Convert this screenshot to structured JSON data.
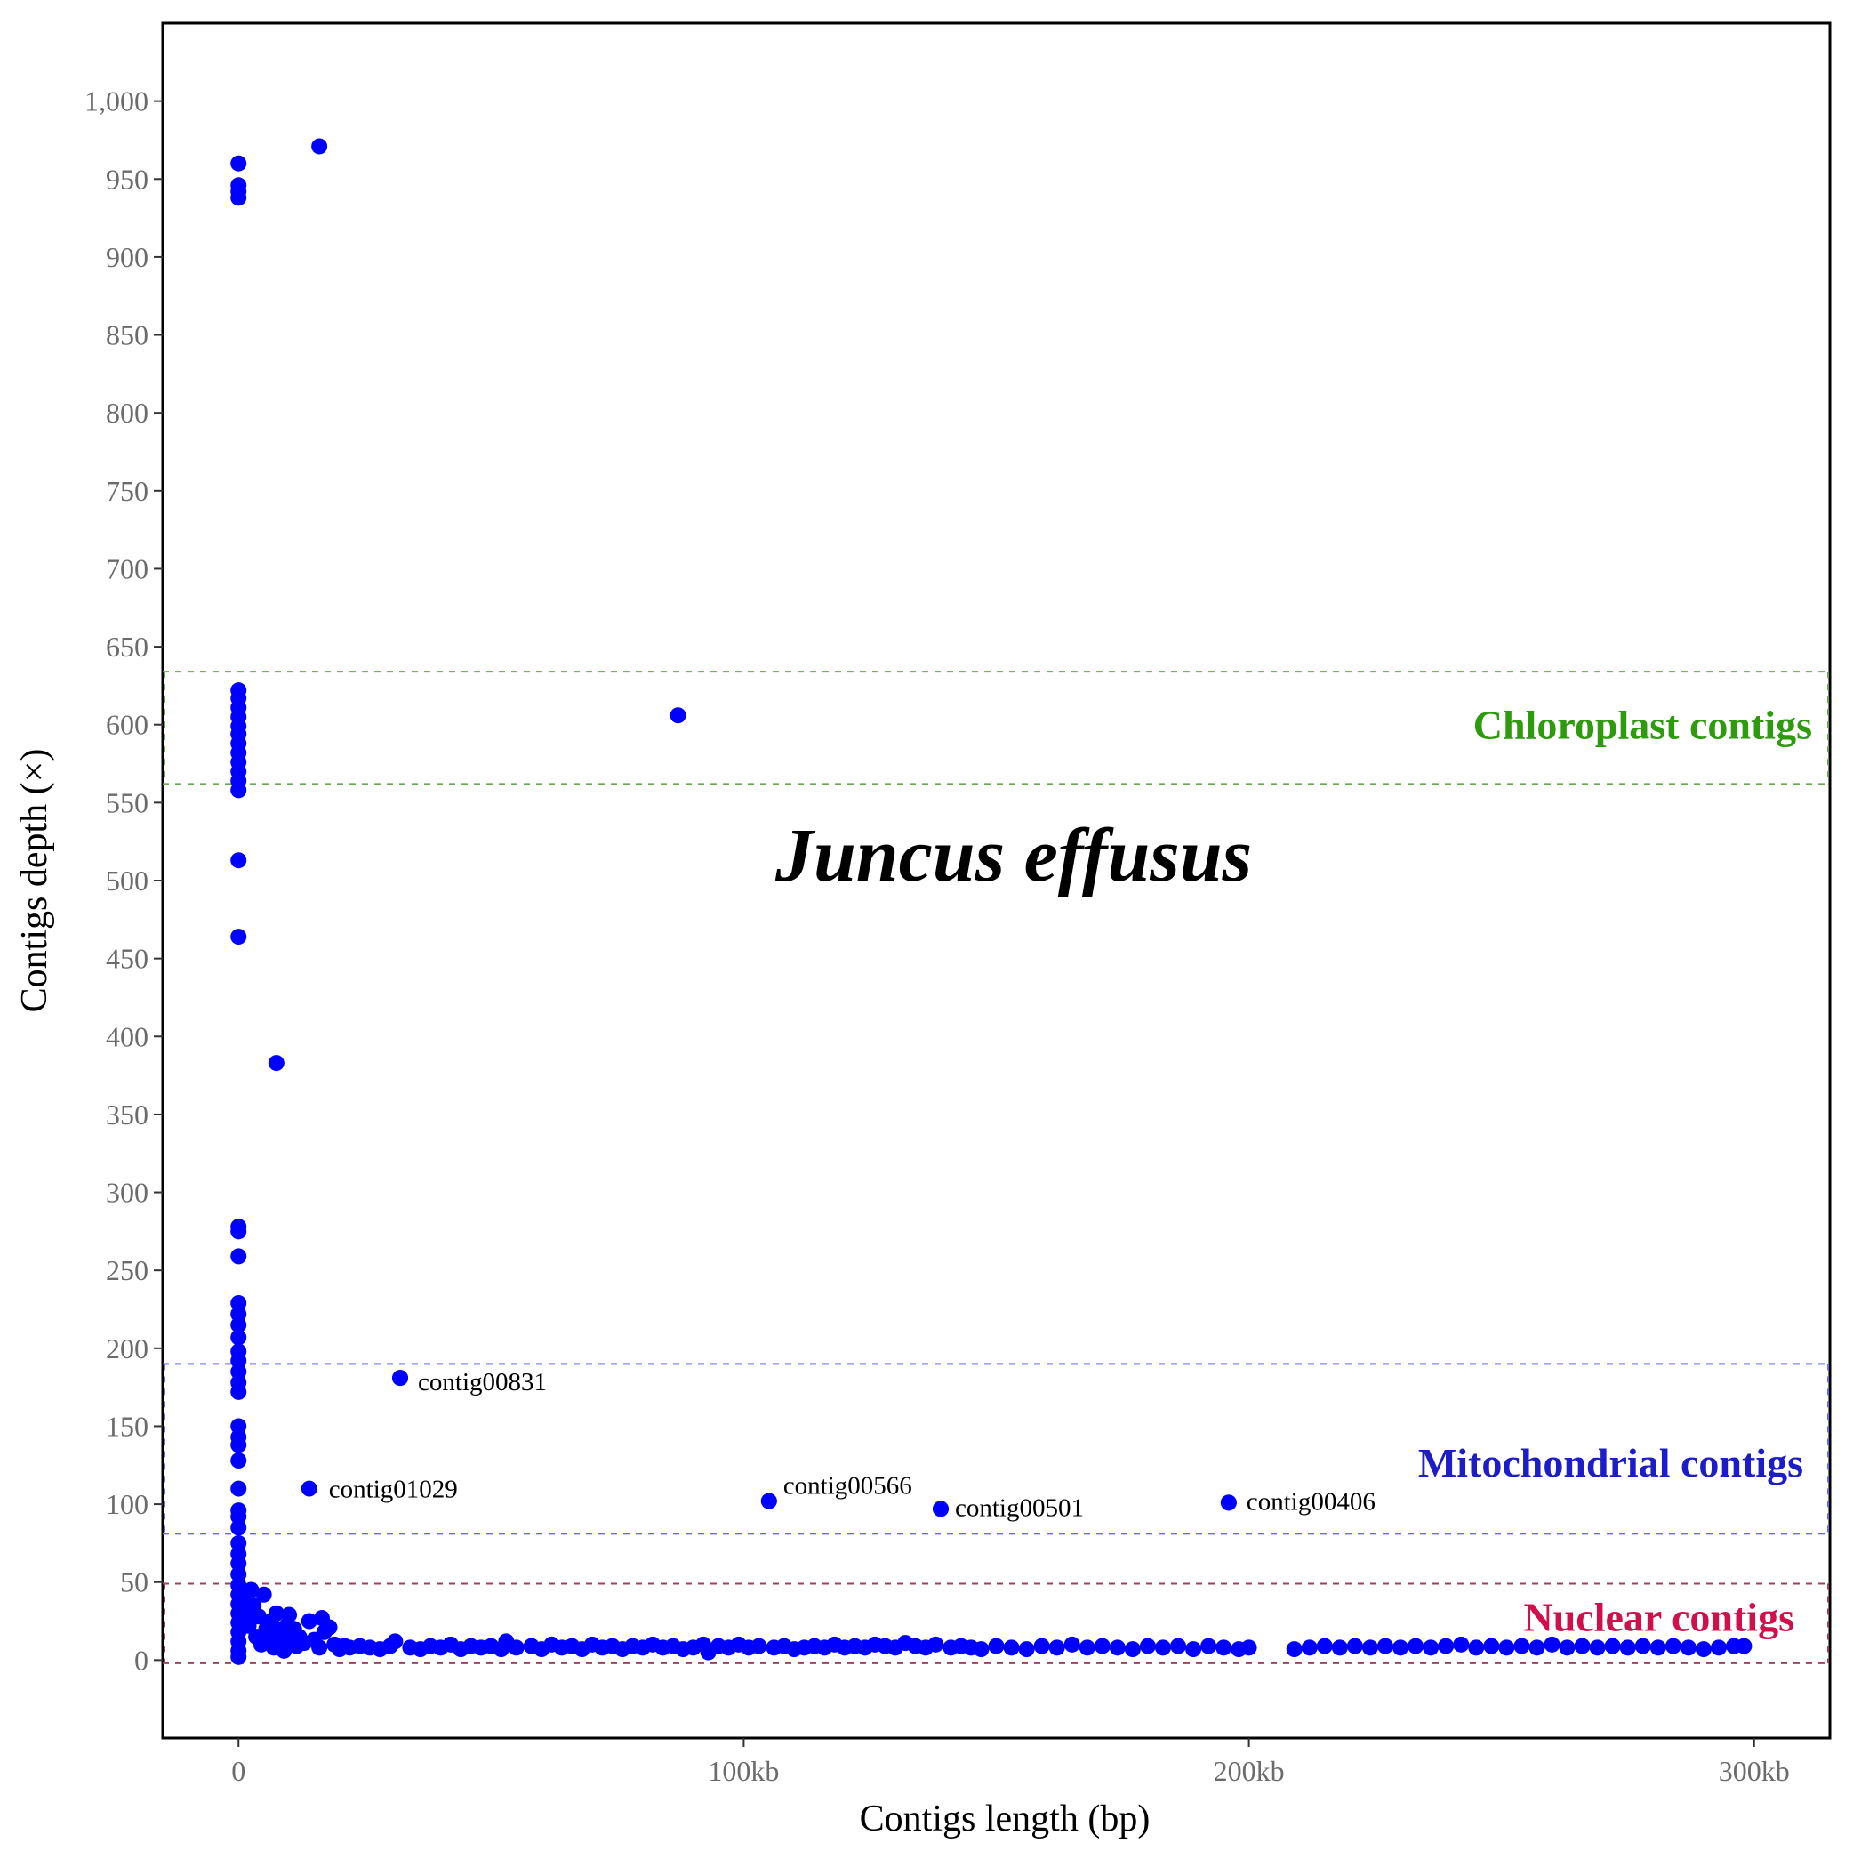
{
  "chart_data": {
    "type": "scatter",
    "title": "Juncus effusus",
    "xlabel": "Contigs length (bp)",
    "ylabel": "Contigs depth (×)",
    "xlim": [
      -15000,
      315000
    ],
    "ylim": [
      -50,
      1050
    ],
    "x_ticks": [
      {
        "value": 0,
        "label": "0"
      },
      {
        "value": 100000,
        "label": "100kb"
      },
      {
        "value": 200000,
        "label": "200kb"
      },
      {
        "value": 300000,
        "label": "300kb"
      }
    ],
    "y_ticks": [
      {
        "value": 0,
        "label": "0"
      },
      {
        "value": 50,
        "label": "50"
      },
      {
        "value": 100,
        "label": "100"
      },
      {
        "value": 150,
        "label": "150"
      },
      {
        "value": 200,
        "label": "200"
      },
      {
        "value": 250,
        "label": "250"
      },
      {
        "value": 300,
        "label": "300"
      },
      {
        "value": 350,
        "label": "350"
      },
      {
        "value": 400,
        "label": "400"
      },
      {
        "value": 450,
        "label": "450"
      },
      {
        "value": 500,
        "label": "500"
      },
      {
        "value": 550,
        "label": "550"
      },
      {
        "value": 600,
        "label": "600"
      },
      {
        "value": 650,
        "label": "650"
      },
      {
        "value": 700,
        "label": "700"
      },
      {
        "value": 750,
        "label": "750"
      },
      {
        "value": 800,
        "label": "800"
      },
      {
        "value": 850,
        "label": "850"
      },
      {
        "value": 900,
        "label": "900"
      },
      {
        "value": 950,
        "label": "950"
      },
      {
        "value": 1000,
        "label": "1,000"
      }
    ],
    "grid": false,
    "point_color": "#0000ff",
    "regions": [
      {
        "label": "Chloroplast contigs",
        "ymin": 562,
        "ymax": 634,
        "color": "#6aa84f",
        "label_color": "#2e9a0e",
        "label_y": 600
      },
      {
        "label": "Mitochondrial contigs",
        "ymin": 81,
        "ymax": 190,
        "color": "#6a6af0",
        "label_color": "#1c1cc8",
        "label_y": 127
      },
      {
        "label": "Nuclear contigs",
        "ymin": -2,
        "ymax": 49,
        "color": "#a04060",
        "label_color": "#d0104a",
        "label_y": 28
      }
    ],
    "labeled_points": [
      {
        "name": "contig00831",
        "x": 32000,
        "y": 181
      },
      {
        "name": "contig01029",
        "x": 14000,
        "y": 110
      },
      {
        "name": "contig00566",
        "x": 105000,
        "y": 102
      },
      {
        "name": "contig00501",
        "x": 139000,
        "y": 97
      },
      {
        "name": "contig00406",
        "x": 196000,
        "y": 101
      }
    ],
    "points": [
      [
        0,
        960
      ],
      [
        0,
        946
      ],
      [
        0,
        942
      ],
      [
        0,
        938
      ],
      [
        16000,
        971
      ],
      [
        0,
        622
      ],
      [
        0,
        617
      ],
      [
        0,
        611
      ],
      [
        0,
        605
      ],
      [
        0,
        599
      ],
      [
        0,
        594
      ],
      [
        0,
        588
      ],
      [
        0,
        582
      ],
      [
        0,
        576
      ],
      [
        0,
        570
      ],
      [
        0,
        564
      ],
      [
        0,
        558
      ],
      [
        87000,
        606
      ],
      [
        0,
        513
      ],
      [
        0,
        464
      ],
      [
        7500,
        383
      ],
      [
        0,
        278
      ],
      [
        0,
        275
      ],
      [
        0,
        259
      ],
      [
        0,
        229
      ],
      [
        0,
        222
      ],
      [
        0,
        215
      ],
      [
        0,
        207
      ],
      [
        0,
        198
      ],
      [
        0,
        192
      ],
      [
        0,
        185
      ],
      [
        0,
        178
      ],
      [
        0,
        172
      ],
      [
        0,
        150
      ],
      [
        0,
        143
      ],
      [
        0,
        138
      ],
      [
        0,
        128
      ],
      [
        0,
        110
      ],
      [
        0,
        96
      ],
      [
        0,
        92
      ],
      [
        0,
        85
      ],
      [
        0,
        75
      ],
      [
        0,
        68
      ],
      [
        0,
        62
      ],
      [
        0,
        55
      ],
      [
        0,
        48
      ],
      [
        0,
        42
      ],
      [
        0,
        36
      ],
      [
        0,
        30
      ],
      [
        0,
        24
      ],
      [
        0,
        18
      ],
      [
        0,
        12
      ],
      [
        0,
        6
      ],
      [
        0,
        2
      ],
      [
        1000,
        40
      ],
      [
        1500,
        30
      ],
      [
        2000,
        22
      ],
      [
        2500,
        45
      ],
      [
        3000,
        35
      ],
      [
        3500,
        15
      ],
      [
        4000,
        28
      ],
      [
        4500,
        10
      ],
      [
        5000,
        42
      ],
      [
        5500,
        20
      ],
      [
        6000,
        12
      ],
      [
        6500,
        25
      ],
      [
        7000,
        8
      ],
      [
        7500,
        30
      ],
      [
        8000,
        18
      ],
      [
        8500,
        14
      ],
      [
        9000,
        6
      ],
      [
        9500,
        22
      ],
      [
        10000,
        29
      ],
      [
        10500,
        12
      ],
      [
        11000,
        20
      ],
      [
        11500,
        9
      ],
      [
        12000,
        15
      ],
      [
        13000,
        11
      ],
      [
        14000,
        25
      ],
      [
        15000,
        13
      ],
      [
        16000,
        8
      ],
      [
        16500,
        27
      ],
      [
        17000,
        18
      ],
      [
        18000,
        21
      ],
      [
        19000,
        10
      ],
      [
        20000,
        7
      ],
      [
        21000,
        9
      ],
      [
        22000,
        8
      ],
      [
        24000,
        9
      ],
      [
        26000,
        8
      ],
      [
        28000,
        7
      ],
      [
        30000,
        9
      ],
      [
        31000,
        12
      ],
      [
        32000,
        181
      ],
      [
        34000,
        8
      ],
      [
        36000,
        7
      ],
      [
        38000,
        9
      ],
      [
        40000,
        8
      ],
      [
        42000,
        10
      ],
      [
        44000,
        7
      ],
      [
        46000,
        9
      ],
      [
        48000,
        8
      ],
      [
        50000,
        9
      ],
      [
        52000,
        7
      ],
      [
        53000,
        12
      ],
      [
        55000,
        8
      ],
      [
        58000,
        9
      ],
      [
        60000,
        7
      ],
      [
        62000,
        10
      ],
      [
        64000,
        8
      ],
      [
        66000,
        9
      ],
      [
        68000,
        7
      ],
      [
        70000,
        10
      ],
      [
        72000,
        8
      ],
      [
        74000,
        9
      ],
      [
        76000,
        7
      ],
      [
        78000,
        9
      ],
      [
        80000,
        8
      ],
      [
        82000,
        10
      ],
      [
        84000,
        8
      ],
      [
        86000,
        9
      ],
      [
        88000,
        7
      ],
      [
        90000,
        8
      ],
      [
        92000,
        10
      ],
      [
        93000,
        5
      ],
      [
        95000,
        9
      ],
      [
        97000,
        8
      ],
      [
        99000,
        10
      ],
      [
        101000,
        8
      ],
      [
        103000,
        9
      ],
      [
        105000,
        102
      ],
      [
        106000,
        8
      ],
      [
        108000,
        9
      ],
      [
        110000,
        7
      ],
      [
        112000,
        8
      ],
      [
        114000,
        9
      ],
      [
        116000,
        8
      ],
      [
        118000,
        10
      ],
      [
        120000,
        8
      ],
      [
        122000,
        9
      ],
      [
        124000,
        8
      ],
      [
        126000,
        10
      ],
      [
        128000,
        9
      ],
      [
        130000,
        8
      ],
      [
        132000,
        11
      ],
      [
        134000,
        9
      ],
      [
        136000,
        8
      ],
      [
        138000,
        10
      ],
      [
        139000,
        97
      ],
      [
        141000,
        8
      ],
      [
        143000,
        9
      ],
      [
        145000,
        8
      ],
      [
        147000,
        7
      ],
      [
        150000,
        9
      ],
      [
        153000,
        8
      ],
      [
        156000,
        7
      ],
      [
        159000,
        9
      ],
      [
        162000,
        8
      ],
      [
        165000,
        10
      ],
      [
        168000,
        8
      ],
      [
        171000,
        9
      ],
      [
        174000,
        8
      ],
      [
        177000,
        7
      ],
      [
        180000,
        9
      ],
      [
        183000,
        8
      ],
      [
        186000,
        9
      ],
      [
        189000,
        7
      ],
      [
        192000,
        9
      ],
      [
        195000,
        8
      ],
      [
        196000,
        101
      ],
      [
        198000,
        7
      ],
      [
        200000,
        8
      ],
      [
        209000,
        7
      ],
      [
        212000,
        8
      ],
      [
        215000,
        9
      ],
      [
        218000,
        8
      ],
      [
        221000,
        9
      ],
      [
        224000,
        8
      ],
      [
        227000,
        9
      ],
      [
        230000,
        8
      ],
      [
        233000,
        9
      ],
      [
        236000,
        8
      ],
      [
        239000,
        9
      ],
      [
        242000,
        10
      ],
      [
        245000,
        8
      ],
      [
        248000,
        9
      ],
      [
        251000,
        8
      ],
      [
        254000,
        9
      ],
      [
        257000,
        8
      ],
      [
        260000,
        10
      ],
      [
        263000,
        8
      ],
      [
        266000,
        9
      ],
      [
        269000,
        8
      ],
      [
        272000,
        9
      ],
      [
        275000,
        8
      ],
      [
        278000,
        9
      ],
      [
        281000,
        8
      ],
      [
        284000,
        9
      ],
      [
        287000,
        8
      ],
      [
        290000,
        7
      ],
      [
        293000,
        8
      ],
      [
        296000,
        9
      ],
      [
        298000,
        9
      ]
    ]
  }
}
